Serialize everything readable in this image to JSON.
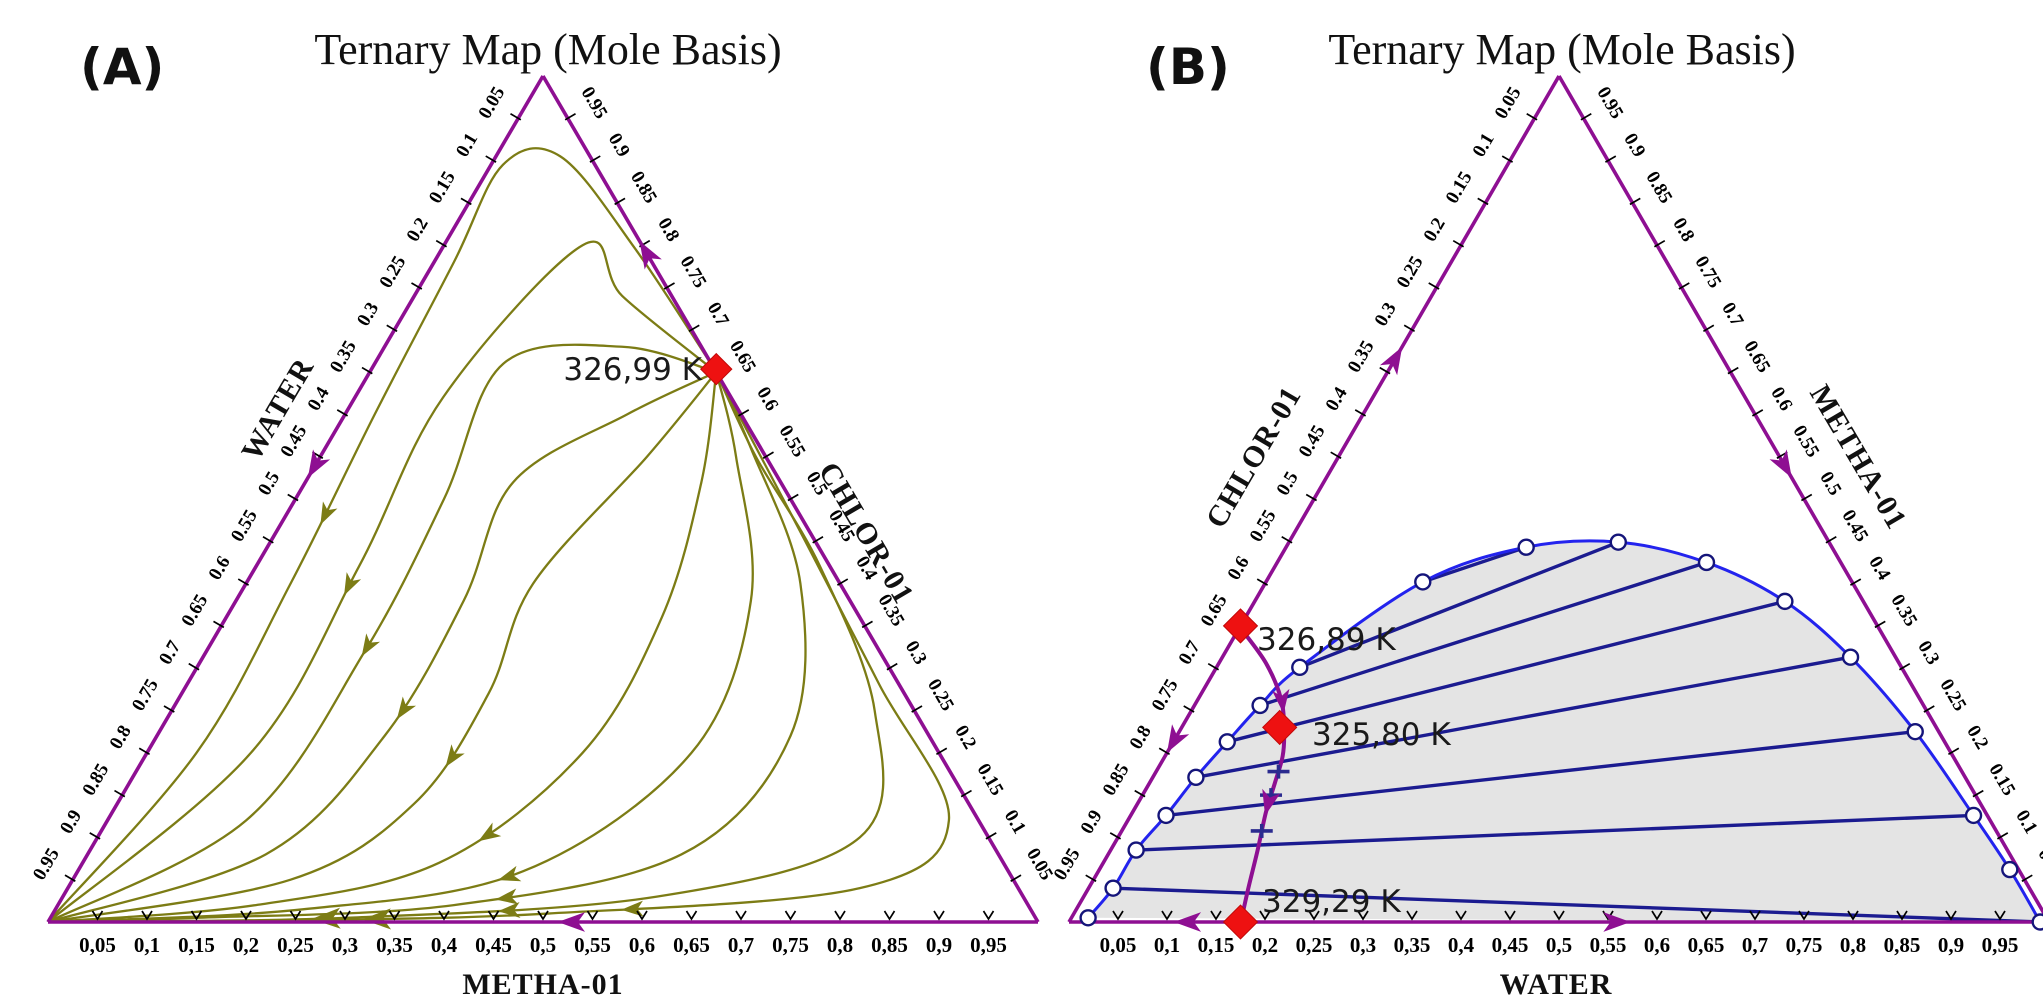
{
  "style": {
    "edge_purple": "#8e0f92",
    "residue_olive": "#7c7c15",
    "tie_navy": "#1b1b90",
    "binodal_blue": "#2323ee",
    "envelope_fill": "#e4e4e4",
    "marker_red": "#ee1111",
    "plus_marker": "#2b2b8f",
    "tick_black": "#000000"
  },
  "tick_labels": {
    "side": [
      "0.05",
      "0.1",
      "0.15",
      "0.2",
      "0.25",
      "0.3",
      "0.35",
      "0.4",
      "0.45",
      "0.5",
      "0.55",
      "0.6",
      "0.65",
      "0.7",
      "0.75",
      "0.8",
      "0.85",
      "0.9",
      "0.95"
    ],
    "bottom": [
      "0,05",
      "0,1",
      "0,15",
      "0,2",
      "0,25",
      "0,3",
      "0,35",
      "0,4",
      "0,45",
      "0,5",
      "0,55",
      "0,6",
      "0,65",
      "0,7",
      "0,75",
      "0,8",
      "0,85",
      "0,9",
      "0,95"
    ]
  },
  "panels": [
    {
      "panel_label": "(A)",
      "title": "Ternary Map (Mole Basis)",
      "axes": {
        "left": {
          "name": "WATER"
        },
        "right": {
          "name": "CHLOR-01"
        },
        "bottom": {
          "name": "METHA-01"
        }
      }
    },
    {
      "panel_label": "(B)",
      "title": "Ternary Map (Mole Basis)",
      "axes": {
        "left": {
          "name": "CHLOR-01"
        },
        "right": {
          "name": "METHA-01"
        },
        "bottom": {
          "name": "WATER"
        }
      }
    }
  ],
  "chart_data": [
    {
      "panel": "A",
      "type": "ternary_residue_curve_map",
      "title": "Ternary Map (Mole Basis)",
      "component_order": [
        "CHLOR-01",
        "METHA-01",
        "WATER"
      ],
      "vertex_components": {
        "top": "CHLOR-01",
        "bottom_left": "WATER",
        "bottom_right": "METHA-01"
      },
      "axis_range": [
        0,
        1
      ],
      "tick_step": 0.05,
      "azeotropes": [
        {
          "label": "326,99 K",
          "temperature_K": 326.99,
          "marker": "red-diamond",
          "composition": {
            "CHLOR-01": 0.65,
            "METHA-01": 0.35,
            "WATER": 0.0
          },
          "location": "CHLOR-01 / METHA-01 edge"
        }
      ],
      "residue_curves": [
        {
          "points": [
            [
              0.65,
              0.35,
              0.0
            ],
            [
              0.796,
              0.195,
              0.009
            ],
            [
              0.905,
              0.065,
              0.03
            ],
            [
              0.895,
              0.012,
              0.093
            ],
            [
              0.78,
              0.02,
              0.2
            ],
            [
              0.6,
              0.03,
              0.37
            ],
            [
              0.4,
              0.045,
              0.555
            ],
            [
              0.2,
              0.05,
              0.75
            ],
            [
              0.0,
              0.0,
              1.0
            ]
          ]
        },
        {
          "points": [
            [
              0.65,
              0.35,
              0.0
            ],
            [
              0.74,
              0.21,
              0.05
            ],
            [
              0.8,
              0.14,
              0.06
            ],
            [
              0.62,
              0.089,
              0.291
            ],
            [
              0.42,
              0.104,
              0.476
            ],
            [
              0.2,
              0.105,
              0.695
            ],
            [
              0.0,
              0.0,
              1.0
            ]
          ]
        },
        {
          "points": [
            [
              0.65,
              0.35,
              0.0
            ],
            [
              0.68,
              0.24,
              0.08
            ],
            [
              0.66,
              0.13,
              0.21
            ],
            [
              0.5,
              0.15,
              0.35
            ],
            [
              0.32,
              0.16,
              0.52
            ],
            [
              0.12,
              0.14,
              0.74
            ],
            [
              0.0,
              0.0,
              1.0
            ]
          ]
        },
        {
          "points": [
            [
              0.65,
              0.35,
              0.0
            ],
            [
              0.6,
              0.285,
              0.115
            ],
            [
              0.52,
              0.21,
              0.27
            ],
            [
              0.38,
              0.23,
              0.39
            ],
            [
              0.22,
              0.23,
              0.55
            ],
            [
              0.08,
              0.18,
              0.74
            ],
            [
              0.0,
              0.0,
              1.0
            ]
          ]
        },
        {
          "points": [
            [
              0.65,
              0.35,
              0.0
            ],
            [
              0.55,
              0.33,
              0.12
            ],
            [
              0.4,
              0.29,
              0.31
            ],
            [
              0.27,
              0.31,
              0.42
            ],
            [
              0.14,
              0.3,
              0.56
            ],
            [
              0.05,
              0.22,
              0.73
            ],
            [
              0.0,
              0.0,
              1.0
            ]
          ]
        },
        {
          "points": [
            [
              0.65,
              0.35,
              0.0
            ],
            [
              0.52,
              0.4,
              0.08
            ],
            [
              0.36,
              0.44,
              0.2
            ],
            [
              0.2,
              0.44,
              0.36
            ],
            [
              0.07,
              0.36,
              0.57
            ],
            [
              0.02,
              0.2,
              0.78
            ],
            [
              0.0,
              0.0,
              1.0
            ]
          ]
        },
        {
          "points": [
            [
              0.65,
              0.35,
              0.0
            ],
            [
              0.55,
              0.42,
              0.03
            ],
            [
              0.38,
              0.52,
              0.1
            ],
            [
              0.2,
              0.55,
              0.25
            ],
            [
              0.06,
              0.45,
              0.49
            ],
            [
              0.015,
              0.25,
              0.735
            ],
            [
              0.0,
              0.0,
              1.0
            ]
          ]
        },
        {
          "points": [
            [
              0.65,
              0.35,
              0.0
            ],
            [
              0.56,
              0.43,
              0.01
            ],
            [
              0.4,
              0.56,
              0.04
            ],
            [
              0.22,
              0.64,
              0.14
            ],
            [
              0.08,
              0.6,
              0.32
            ],
            [
              0.02,
              0.4,
              0.58
            ],
            [
              0.005,
              0.15,
              0.845
            ],
            [
              0.0,
              0.0,
              1.0
            ]
          ]
        },
        {
          "points": [
            [
              0.65,
              0.35,
              0.0
            ],
            [
              0.55,
              0.44,
              0.01
            ],
            [
              0.42,
              0.57,
              0.01
            ],
            [
              0.25,
              0.71,
              0.04
            ],
            [
              0.1,
              0.77,
              0.13
            ],
            [
              0.03,
              0.6,
              0.37
            ],
            [
              0.005,
              0.3,
              0.695
            ],
            [
              0.0,
              0.0,
              1.0
            ]
          ]
        },
        {
          "points": [
            [
              0.65,
              0.35,
              0.0
            ],
            [
              0.45,
              0.54,
              0.01
            ],
            [
              0.28,
              0.7,
              0.02
            ],
            [
              0.12,
              0.85,
              0.03
            ],
            [
              0.04,
              0.8,
              0.16
            ],
            [
              0.01,
              0.5,
              0.49
            ],
            [
              0.002,
              0.25,
              0.748
            ],
            [
              0.0,
              0.0,
              1.0
            ]
          ]
        }
      ]
    },
    {
      "panel": "B",
      "type": "ternary_lle_map_with_distillation_boundary",
      "title": "Ternary Map (Mole Basis)",
      "component_order": [
        "CHLOR-01",
        "METHA-01",
        "WATER"
      ],
      "vertex_components": {
        "top": "METHA-01",
        "bottom_left": "CHLOR-01",
        "bottom_right": "WATER"
      },
      "axis_range": [
        0,
        1
      ],
      "tick_step": 0.05,
      "azeotropes": [
        {
          "label": "326,89 K",
          "temperature_K": 326.89,
          "marker": "red-diamond",
          "composition": {
            "CHLOR-01": 0.65,
            "METHA-01": 0.35,
            "WATER": 0.0
          },
          "location": "CHLOR-01 / METHA-01 edge"
        },
        {
          "label": "325,80 K",
          "temperature_K": 325.8,
          "marker": "red-diamond",
          "composition": {
            "CHLOR-01": 0.67,
            "METHA-01": 0.23,
            "WATER": 0.1
          },
          "location": "ternary interior"
        },
        {
          "label": "329,29 K",
          "temperature_K": 329.29,
          "marker": "red-diamond",
          "composition": {
            "CHLOR-01": 0.825,
            "METHA-01": 0.0,
            "WATER": 0.175
          },
          "location": "CHLOR-01 / WATER edge"
        }
      ],
      "binodal": {
        "marker": "open-circle",
        "points": [
          [
            0.978,
            0.005,
            0.017
          ],
          [
            0.935,
            0.04,
            0.025
          ],
          [
            0.889,
            0.085,
            0.026
          ],
          [
            0.838,
            0.126,
            0.036
          ],
          [
            0.785,
            0.171,
            0.044
          ],
          [
            0.732,
            0.213,
            0.055
          ],
          [
            0.677,
            0.256,
            0.067
          ],
          [
            0.614,
            0.301,
            0.085
          ],
          [
            0.438,
            0.402,
            0.16
          ],
          [
            0.312,
            0.443,
            0.245
          ],
          [
            0.215,
            0.449,
            0.336
          ],
          [
            0.137,
            0.425,
            0.438
          ],
          [
            0.08,
            0.379,
            0.541
          ],
          [
            0.046,
            0.313,
            0.641
          ],
          [
            0.024,
            0.225,
            0.751
          ],
          [
            0.014,
            0.126,
            0.86
          ],
          [
            0.009,
            0.062,
            0.929
          ],
          [
            0.009,
            0.0,
            0.991
          ]
        ]
      },
      "tie_lines": {
        "pairs": [
          [
            1,
            17
          ],
          [
            2,
            15
          ],
          [
            3,
            14
          ],
          [
            4,
            13
          ],
          [
            5,
            12
          ],
          [
            6,
            11
          ],
          [
            7,
            10
          ],
          [
            8,
            9
          ]
        ]
      },
      "distillation_boundary": {
        "points": [
          [
            0.651,
            0.346,
            0.003
          ],
          [
            0.646,
            0.306,
            0.048
          ],
          [
            0.652,
            0.263,
            0.085
          ],
          [
            0.668,
            0.225,
            0.107
          ],
          [
            0.684,
            0.196,
            0.12
          ],
          [
            0.708,
            0.164,
            0.128
          ],
          [
            0.734,
            0.13,
            0.136
          ],
          [
            0.765,
            0.085,
            0.15
          ],
          [
            0.797,
            0.04,
            0.163
          ],
          [
            0.824,
            0.001,
            0.175
          ]
        ]
      }
    }
  ]
}
